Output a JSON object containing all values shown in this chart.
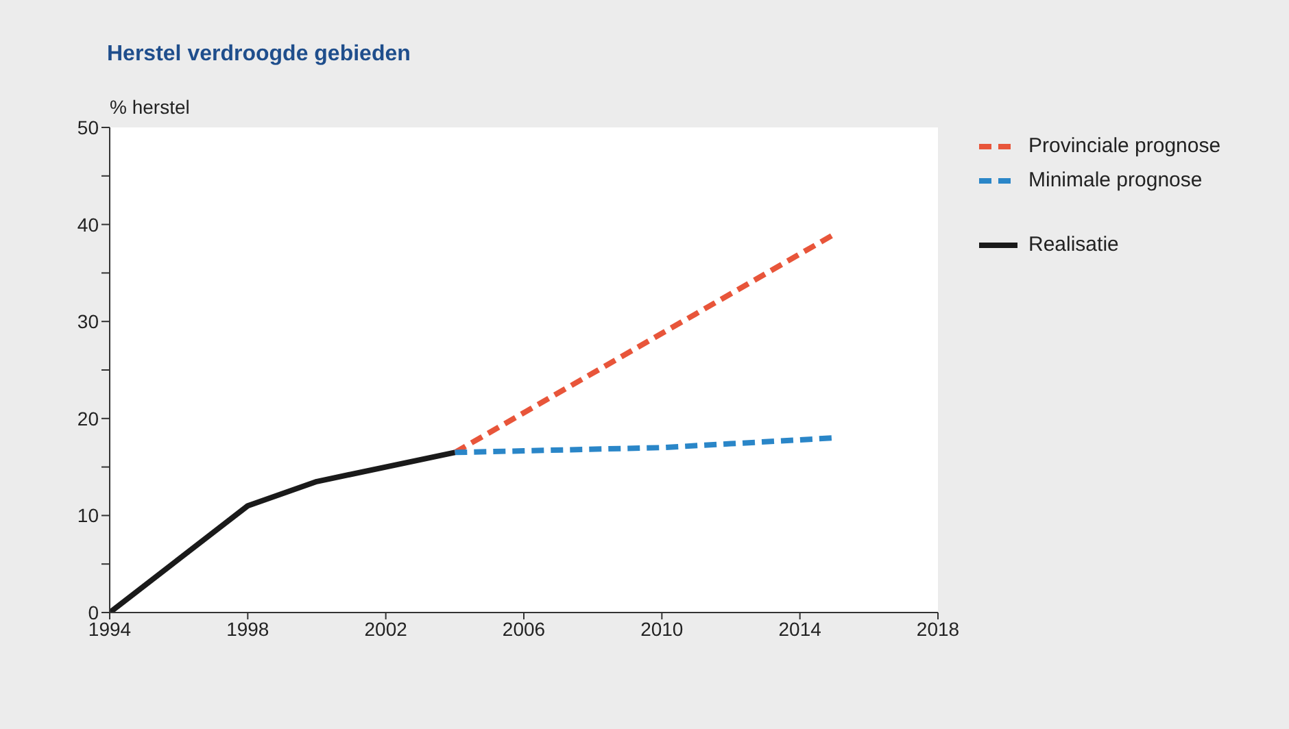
{
  "chart_data": {
    "type": "line",
    "title": "Herstel verdroogde gebieden",
    "ylabel": "% herstel",
    "xlim": [
      1994,
      2018
    ],
    "xticks": [
      1994,
      1998,
      2002,
      2006,
      2010,
      2014,
      2018
    ],
    "ylim": [
      0,
      50
    ],
    "yticks": [
      0,
      {
        "value": 5,
        "label": null
      },
      10,
      {
        "value": 15,
        "label": null
      },
      20,
      {
        "value": 25,
        "label": null
      },
      30,
      {
        "value": 35,
        "label": null
      },
      40,
      {
        "value": 45,
        "label": null
      },
      50
    ],
    "legend": "top right",
    "series": [
      {
        "name": "Provinciale prognose",
        "color": "#e8553a",
        "line_style": "dashed",
        "x": [
          2004,
          2015
        ],
        "values": [
          16.5,
          39
        ]
      },
      {
        "name": "Minimale prognose",
        "color": "#2a86c8",
        "line_style": "dashed",
        "x": [
          2004,
          2010,
          2012,
          2015
        ],
        "values": [
          16.5,
          17,
          17.4,
          18
        ]
      },
      {
        "name": "Realisatie",
        "color": "#1a1a1a",
        "line_style": "solid",
        "x": [
          1994,
          1998,
          2000,
          2004
        ],
        "values": [
          0,
          11,
          13.5,
          16.5
        ]
      }
    ]
  }
}
